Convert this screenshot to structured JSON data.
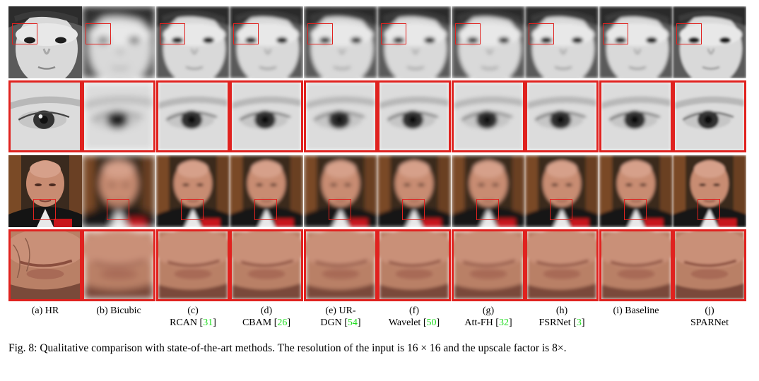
{
  "figure": {
    "panels": [
      {
        "letter": "(a)",
        "method": "HR",
        "ref": ""
      },
      {
        "letter": "(b)",
        "method": "Bicubic",
        "ref": ""
      },
      {
        "letter": "(c)",
        "method": "RCAN",
        "ref": "31"
      },
      {
        "letter": "(d)",
        "method": "CBAM",
        "ref": "26"
      },
      {
        "letter": "(e)",
        "method": "UR-DGN",
        "ref": "54"
      },
      {
        "letter": "(f)",
        "method": "Wavelet",
        "ref": "50"
      },
      {
        "letter": "(g)",
        "method": "Att-FH",
        "ref": "32"
      },
      {
        "letter": "(h)",
        "method": "FSRNet",
        "ref": "3"
      },
      {
        "letter": "(i)",
        "method": "Baseline",
        "ref": ""
      },
      {
        "letter": "(j)",
        "method": "SPARNet",
        "ref": ""
      }
    ],
    "rows": [
      {
        "content": "child face",
        "role": "full face"
      },
      {
        "content": "child eye",
        "role": "zoomed crop"
      },
      {
        "content": "man face",
        "role": "full face"
      },
      {
        "content": "man mouth",
        "role": "zoomed crop"
      }
    ],
    "colors": {
      "box": "#e0221f",
      "citation": "#1fdc1f"
    },
    "caption": "Fig. 8: Qualitative comparison with state-of-the-art methods. The resolution of the input is 16 × 16 and the upscale factor is 8×."
  }
}
